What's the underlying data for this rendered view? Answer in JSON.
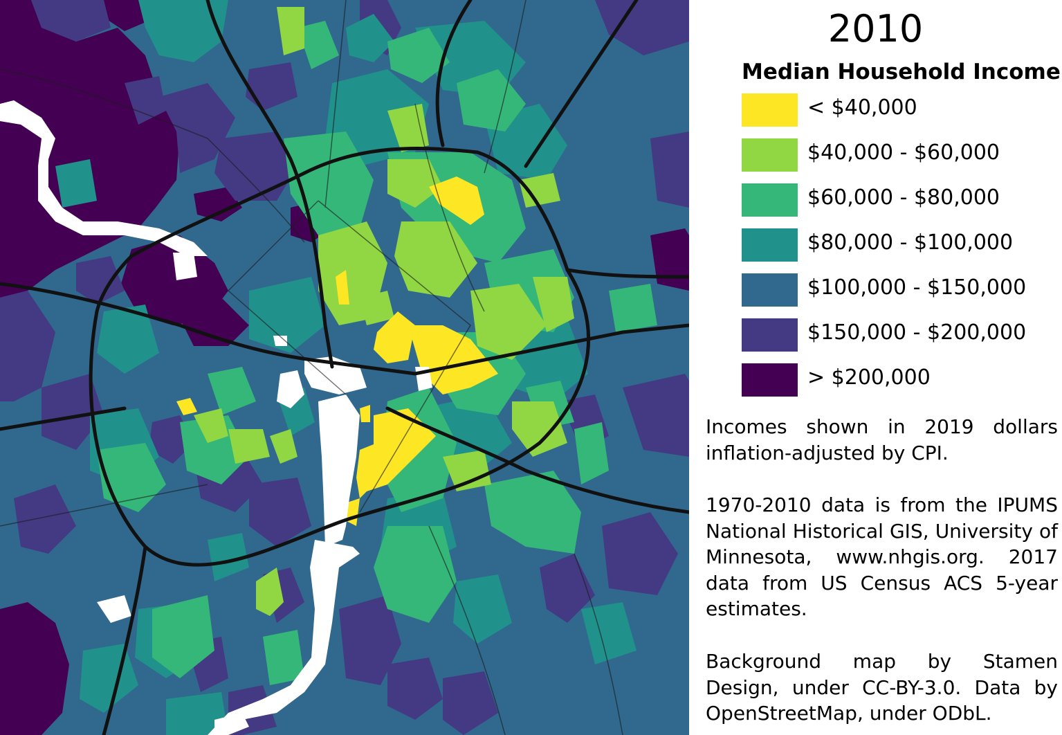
{
  "legend": {
    "year": "2010",
    "title": "Median Household Income",
    "classes": [
      {
        "label": "< $40,000",
        "color": "#fde725"
      },
      {
        "label": "$40,000 - $60,000",
        "color": "#90d743"
      },
      {
        "label": "$60,000 - $80,000",
        "color": "#35b779"
      },
      {
        "label": "$80,000 - $100,000",
        "color": "#21918c"
      },
      {
        "label": "$100,000 - $150,000",
        "color": "#31688e"
      },
      {
        "label": "$150,000 - $200,000",
        "color": "#443983"
      },
      {
        "label": "> $200,000",
        "color": "#440154"
      }
    ]
  },
  "notes": {
    "inflation": "Incomes shown in 2019 dollars inflation-adjusted by CPI.",
    "sources": "1970-2010 data is from the IPUMS National Historical GIS, University of Minnesota, www.nhgis.org. 2017 data from US Census ACS 5-year estimates.",
    "attribution": "Background map by Stamen Design, under CC-BY-3.0. Data by OpenStreetMap, under ODbL."
  }
}
